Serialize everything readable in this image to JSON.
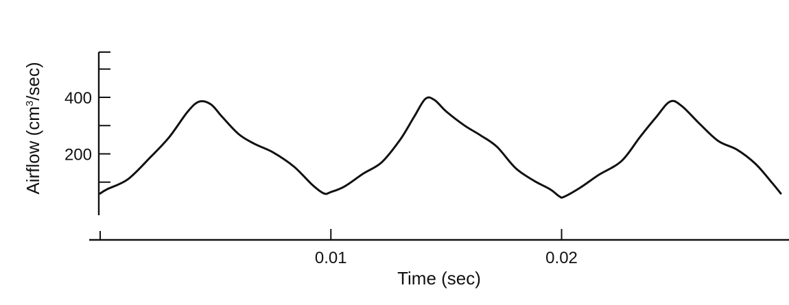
{
  "chart_data": {
    "type": "line",
    "title": "",
    "xlabel": "Time (sec)",
    "ylabel_prefix": "Airflow (cm",
    "ylabel_sup": "3",
    "ylabel_suffix": "/sec)",
    "xlim": [
      0,
      0.0295
    ],
    "ylim": [
      -80,
      560
    ],
    "x_ticks": [
      {
        "value": 0.01,
        "label": "0.01"
      },
      {
        "value": 0.02,
        "label": "0.02"
      }
    ],
    "y_ticks": [
      {
        "value": 200,
        "label": "200"
      },
      {
        "value": 400,
        "label": "400"
      }
    ],
    "y_minor_ticks": [
      100,
      300,
      500,
      560
    ],
    "series": [
      {
        "name": "",
        "x": [
          0.0,
          0.0003,
          0.0012,
          0.0022,
          0.003,
          0.0038,
          0.0043,
          0.0048,
          0.0053,
          0.006,
          0.0067,
          0.0075,
          0.0084,
          0.0092,
          0.0097,
          0.01,
          0.0106,
          0.0114,
          0.0122,
          0.013,
          0.0136,
          0.0141,
          0.0145,
          0.015,
          0.0158,
          0.0165,
          0.0172,
          0.018,
          0.0188,
          0.0195,
          0.0199,
          0.0201,
          0.0208,
          0.0216,
          0.0226,
          0.0234,
          0.0241,
          0.0247,
          0.0252,
          0.026,
          0.0268,
          0.0276,
          0.0284,
          0.0291,
          0.0295
        ],
        "y": [
          60,
          75,
          110,
          190,
          260,
          350,
          385,
          375,
          330,
          270,
          235,
          205,
          155,
          90,
          60,
          65,
          85,
          130,
          170,
          250,
          330,
          395,
          390,
          350,
          300,
          265,
          225,
          150,
          105,
          75,
          50,
          48,
          80,
          125,
          175,
          260,
          330,
          385,
          370,
          305,
          245,
          215,
          165,
          100,
          60
        ]
      }
    ]
  }
}
